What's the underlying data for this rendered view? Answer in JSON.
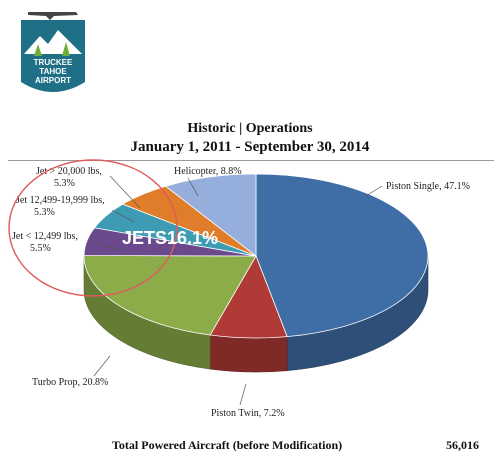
{
  "logo": {
    "text_lines": [
      "TRUCKEE",
      "TAHOE",
      "AIRPORT"
    ],
    "colors": {
      "badge": "#1f6f86",
      "mountain": "#ffffff",
      "tree": "#6fae3a"
    }
  },
  "header": {
    "title": "Historic | Operations",
    "subtitle": "January 1, 2011 - September 30, 2014"
  },
  "chart_data": {
    "type": "pie",
    "style": "3d",
    "slices": [
      {
        "label": "Piston Single, 47.1%",
        "value": 47.1,
        "color": "#3f6ea6"
      },
      {
        "label": "Piston Twin, 7.2%",
        "value": 7.2,
        "color": "#b03a36"
      },
      {
        "label": "Turbo Prop, 20.8%",
        "value": 20.8,
        "color": "#8cac4a"
      },
      {
        "label": [
          "Jet < 12,499 lbs,",
          "5.5%"
        ],
        "value": 5.5,
        "color": "#6a4a8c"
      },
      {
        "label": [
          "Jet 12,499-19,999 lbs,",
          "5.3%"
        ],
        "value": 5.3,
        "color": "#3d9bb3"
      },
      {
        "label": [
          "Jet > 20,000 lbs,",
          "5.3%"
        ],
        "value": 5.3,
        "color": "#e07d2a"
      },
      {
        "label": "Helicopter, 8.8%",
        "value": 8.8,
        "color": "#95aedb"
      }
    ],
    "annotation": {
      "text": "JETS16.1%",
      "circle_color": "#e05a5a"
    }
  },
  "footer": {
    "label": "Total Powered Aircraft (before Modification)",
    "value": "56,016"
  }
}
